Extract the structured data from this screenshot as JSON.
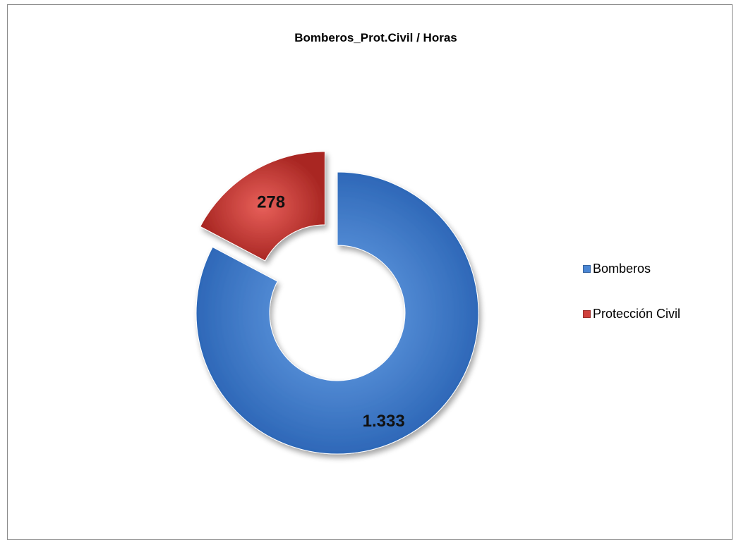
{
  "chart_data": {
    "type": "pie",
    "variant": "doughnut-exploded",
    "title": "Bomberos_Prot.Civil / Horas",
    "categories": [
      "Bomberos",
      "Protección Civil"
    ],
    "values": [
      1333,
      278
    ],
    "data_labels": [
      "1.333",
      "278"
    ],
    "colors": [
      "#4a86d4",
      "#d0413c"
    ],
    "legend_position": "right",
    "legend": [
      {
        "label": "Bomberos",
        "color": "#4a86d4"
      },
      {
        "label": "Protección Civil",
        "color": "#d0413c"
      }
    ]
  }
}
